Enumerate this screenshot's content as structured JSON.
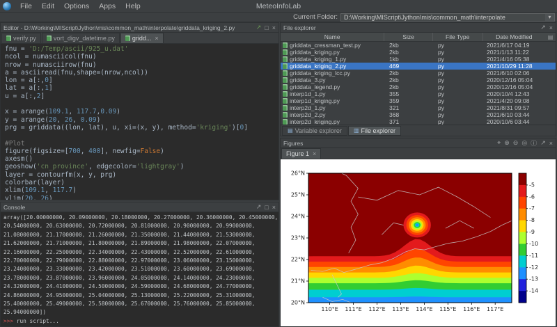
{
  "colors": {
    "selection": "#3a75c4",
    "py_green": "#4e9a54",
    "prompt_red": "#d25252",
    "str_green": "#6a8759",
    "num_blue": "#6897bb",
    "com_gray": "#808080",
    "kw_orange": "#cc7832"
  },
  "icons": {
    "float": "↗",
    "maximize": "□",
    "close": "×",
    "dropdown": "▾",
    "select": "⌖",
    "zoom_in": "⊕",
    "zoom_out": "⊖",
    "full_extent": "◎",
    "identify": "ⓘ",
    "table_options": "▤",
    "var_tab": "▤",
    "file_tab": "▥"
  },
  "menubar": {
    "app_title": "MeteoInfoLab",
    "items": [
      "File",
      "Edit",
      "Options",
      "Apps",
      "Help"
    ]
  },
  "folderbar": {
    "label": "Current Folder:",
    "path": "D:\\Working\\MIScript\\Jython\\mis\\common_math\\interpolate"
  },
  "editor": {
    "title": "Editor - D:\\Working\\MIScript\\Jython\\mis\\common_math\\interpolate\\griddata_kriging_2.py",
    "tabs": [
      {
        "label": "verify.py",
        "active": false
      },
      {
        "label": "vort_digv_datetime.py",
        "active": false
      },
      {
        "label": "gridd...",
        "active": true
      }
    ],
    "code_lines": [
      "fnu = 'D:/Temp/ascii/925_u.dat'",
      "ncol = numasciicol(fnu)",
      "nrow = numasciirow(fnu)",
      "a = asciiread(fnu,shape=(nrow,ncol))",
      "lon = a[:,0]",
      "lat = a[:,1]",
      "u = a[:,2]",
      "",
      "x = arange(109.1, 117.7,0.09)",
      "y = arange(20, 26, 0.09)",
      "prg = griddata((lon, lat), u, xi=(x, y), method='kriging')[0]",
      "",
      "#Plot",
      "figure(figsize=[700, 400], newfig=False)",
      "axesm()",
      "geoshow('cn_province', edgecolor='lightgray')",
      "layer = contourfm(x, y, prg)",
      "colorbar(layer)",
      "xlim(109.1, 117.7)",
      "ylim(20, 26)"
    ]
  },
  "console": {
    "title": "Console",
    "lines": [
      "array([20.00000000, 20.09000000, 20.18000000, 20.27000000, 20.36000000, 20.45000000,",
      "20.54000000, 20.63000000, 20.72000000, 20.81000000, 20.90000000, 20.99000000,",
      "21.08000000, 21.17000000, 21.26000000, 21.35000000, 21.44000000, 21.53000000,",
      "21.62000000, 21.71000000, 21.80000000, 21.89000000, 21.98000000, 22.07000000,",
      "22.16000000, 22.25000000, 22.34000000, 22.43000000, 22.52000000, 22.61000000,",
      "22.70000000, 22.79000000, 22.88000000, 22.97000000, 23.06000000, 23.15000000,",
      "23.24000000, 23.33000000, 23.42000000, 23.51000000, 23.60000000, 23.69000000,",
      "23.78000000, 23.87000000, 23.96000000, 24.05000000, 24.14000000, 24.23000000,",
      "24.32000000, 24.41000000, 24.50000000, 24.59000000, 24.68000000, 24.77000000,",
      "24.86000000, 24.95000000, 25.04000000, 25.13000000, 25.22000000, 25.31000000,",
      "25.40000000, 25.49000000, 25.58000000, 25.67000000, 25.76000000, 25.85000000,",
      "25.94000000])"
    ],
    "prompt": ">>>",
    "status_line": "run script..."
  },
  "file_explorer": {
    "title": "File explorer",
    "columns": [
      "Name",
      "Size",
      "File Type",
      "Date Modified"
    ],
    "selected_index": 3,
    "rows": [
      {
        "name": "griddata_cressman_test.py",
        "size": "2kb",
        "type": "py",
        "date": "2021/6/17 04:19"
      },
      {
        "name": "griddata_kriging.py",
        "size": "2kb",
        "type": "py",
        "date": "2021/1/13 11:22"
      },
      {
        "name": "griddata_kriging_1.py",
        "size": "1kb",
        "type": "py",
        "date": "2021/4/16 05:38"
      },
      {
        "name": "griddata_kriging_2.py",
        "size": "469",
        "type": "py",
        "date": "2021/10/29 11:28"
      },
      {
        "name": "griddata_kriging_lcc.py",
        "size": "2kb",
        "type": "py",
        "date": "2021/6/10 02:06"
      },
      {
        "name": "griddata_3.py",
        "size": "2kb",
        "type": "py",
        "date": "2020/12/16 05:04"
      },
      {
        "name": "griddata_legend.py",
        "size": "2kb",
        "type": "py",
        "date": "2020/12/16 05:04"
      },
      {
        "name": "interp1d_1.py",
        "size": "355",
        "type": "py",
        "date": "2020/10/4 12:43"
      },
      {
        "name": "interp1d_kriging.py",
        "size": "359",
        "type": "py",
        "date": "2021/4/20 09:08"
      },
      {
        "name": "interp2d_1.py",
        "size": "321",
        "type": "py",
        "date": "2021/8/31 09:57"
      },
      {
        "name": "interp2d_2.py",
        "size": "368",
        "type": "py",
        "date": "2021/6/10 03:44"
      },
      {
        "name": "interp2d_kriging.py",
        "size": "371",
        "type": "py",
        "date": "2020/10/6 03:44"
      }
    ],
    "bottom_tabs": [
      {
        "label": "Variable explorer",
        "active": false
      },
      {
        "label": "File explorer",
        "active": true
      }
    ]
  },
  "figures": {
    "title": "Figures",
    "tab": "Figure 1"
  },
  "chart_data": {
    "type": "heatmap",
    "subtype": "filled-contour-map",
    "title": "",
    "xlabel": "",
    "ylabel": "",
    "xlim": [
      109.1,
      117.7
    ],
    "ylim": [
      20,
      26
    ],
    "x_ticks": [
      110,
      111,
      112,
      113,
      114,
      115,
      116,
      117
    ],
    "x_tick_labels": [
      "110°E",
      "111°E",
      "112°E",
      "113°E",
      "114°E",
      "115°E",
      "116°E",
      "117°E"
    ],
    "y_ticks": [
      20,
      21,
      22,
      23,
      24,
      25,
      26
    ],
    "y_tick_labels": [
      "20°N",
      "21°N",
      "22°N",
      "23°N",
      "24°N",
      "25°N",
      "26°N"
    ],
    "background_color": "#8b0000",
    "colorbar": {
      "labels": [
        "-5",
        "-6",
        "-7",
        "-8",
        "-9",
        "-10",
        "-11",
        "-12",
        "-13",
        "-14"
      ],
      "colors": [
        "#8b0000",
        "#e31a1c",
        "#ff4500",
        "#ff8c00",
        "#ffd700",
        "#adff2f",
        "#32cd32",
        "#00ced1",
        "#1e90ff",
        "#2222dd",
        "#00008b"
      ]
    },
    "low_center": {
      "lon": 113.7,
      "lat": 23.6
    },
    "rings": [
      {
        "r": 0.58,
        "color": "#e31a1c"
      },
      {
        "r": 0.46,
        "color": "#ff4500"
      },
      {
        "r": 0.36,
        "color": "#ff8c00"
      },
      {
        "r": 0.27,
        "color": "#ffd700"
      },
      {
        "r": 0.2,
        "color": "#adff2f"
      },
      {
        "r": 0.14,
        "color": "#32cd32"
      },
      {
        "r": 0.09,
        "color": "#00ced1"
      },
      {
        "r": 0.05,
        "color": "#1e90ff"
      }
    ],
    "band_boundaries": [
      {
        "lat": 22.15,
        "bump": 0.8,
        "color": "#e31a1c"
      },
      {
        "lat": 21.9,
        "bump": 0.6,
        "color": "#ff4500"
      },
      {
        "lat": 21.65,
        "bump": 0.45,
        "color": "#ff8c00"
      },
      {
        "lat": 21.4,
        "bump": 0.32,
        "color": "#ffd700"
      },
      {
        "lat": 21.15,
        "bump": 0.22,
        "color": "#adff2f"
      },
      {
        "lat": 20.9,
        "bump": 0.14,
        "color": "#32cd32"
      },
      {
        "lat": 20.6,
        "bump": 0.08,
        "color": "#00ced1"
      },
      {
        "lat": 20.25,
        "bump": 0.03,
        "color": "#1e90ff"
      }
    ],
    "borders": [
      [
        [
          109.2,
          21.5
        ],
        [
          109.7,
          21.45
        ],
        [
          110.2,
          21.6
        ],
        [
          110.6,
          21.4
        ],
        [
          111.1,
          21.55
        ],
        [
          111.7,
          21.75
        ],
        [
          112.2,
          21.85
        ],
        [
          112.7,
          22.05
        ],
        [
          113.2,
          22.35
        ],
        [
          113.6,
          22.5
        ],
        [
          114.0,
          22.45
        ],
        [
          114.5,
          22.6
        ],
        [
          115.0,
          22.75
        ],
        [
          115.6,
          22.85
        ],
        [
          116.2,
          23.05
        ],
        [
          116.8,
          23.3
        ],
        [
          117.3,
          23.6
        ],
        [
          117.7,
          23.8
        ]
      ],
      [
        [
          110.8,
          22.3
        ],
        [
          111.1,
          22.9
        ],
        [
          110.9,
          23.5
        ],
        [
          111.2,
          24.1
        ],
        [
          110.9,
          24.7
        ],
        [
          111.2,
          25.3
        ],
        [
          110.7,
          25.9
        ],
        [
          110.5,
          26.0
        ]
      ],
      [
        [
          111.2,
          24.9
        ],
        [
          112.0,
          24.75
        ],
        [
          112.9,
          25.2
        ],
        [
          113.8,
          25.0
        ],
        [
          114.6,
          25.35
        ],
        [
          115.4,
          24.9
        ],
        [
          116.1,
          24.45
        ],
        [
          116.8,
          23.95
        ]
      ],
      [
        [
          112.2,
          23.15
        ],
        [
          112.7,
          23.7
        ],
        [
          113.3,
          23.55
        ],
        [
          113.9,
          23.9
        ]
      ],
      [
        [
          114.9,
          23.45
        ],
        [
          115.5,
          23.8
        ],
        [
          116.1,
          23.45
        ]
      ],
      [
        [
          109.7,
          20.25
        ],
        [
          110.1,
          20.05
        ],
        [
          110.55,
          20.15
        ],
        [
          110.9,
          20.0
        ]
      ],
      [
        [
          110.1,
          21.3
        ],
        [
          110.3,
          20.85
        ],
        [
          110.5,
          20.4
        ],
        [
          110.35,
          20.25
        ]
      ]
    ]
  }
}
